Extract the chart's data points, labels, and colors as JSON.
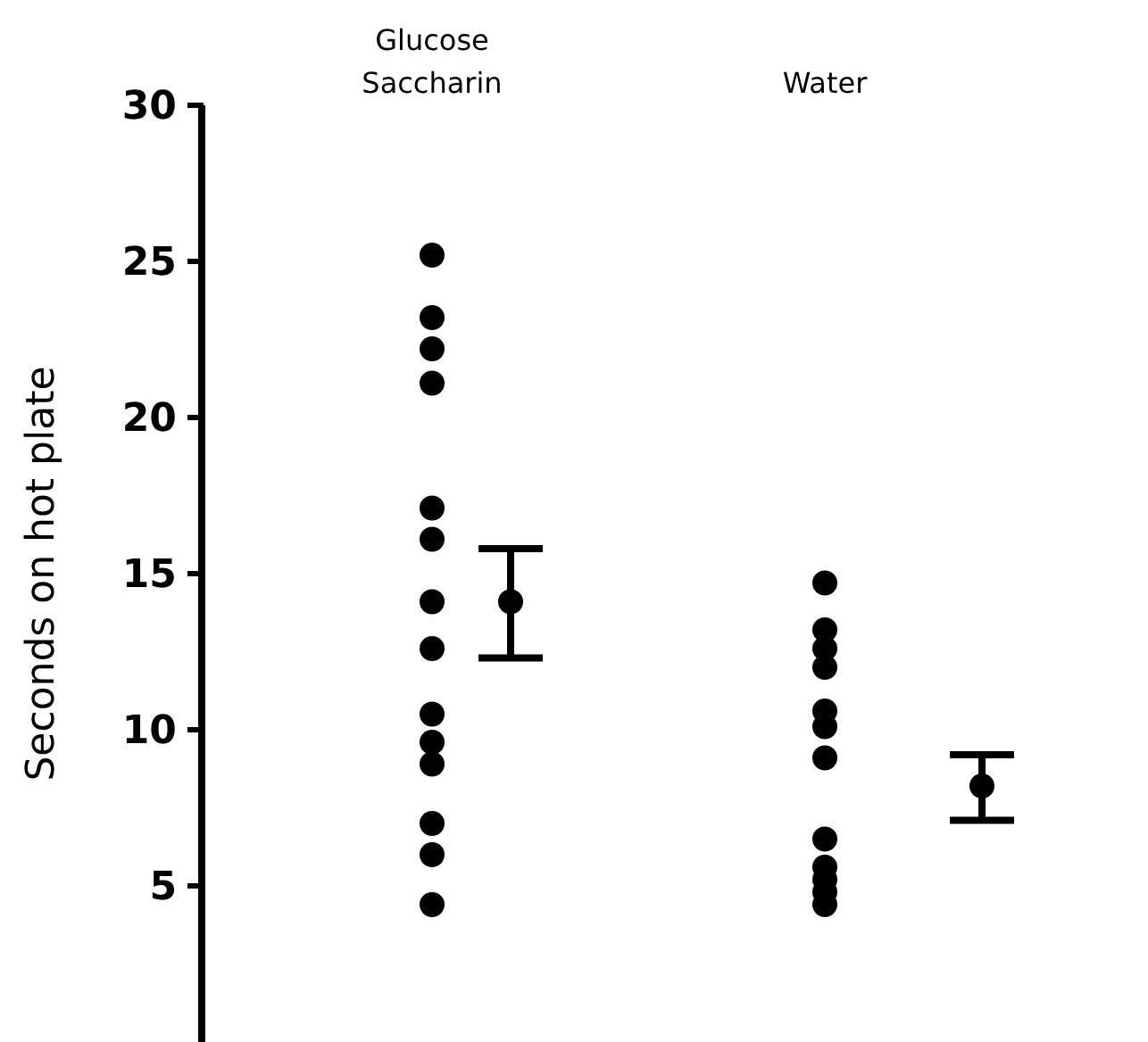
{
  "chart_data": {
    "type": "scatter",
    "ylabel": "Seconds on hot plate",
    "categories": [
      "Glucose Saccharin",
      null,
      null,
      null,
      null,
      "Water",
      null,
      null
    ],
    "ylim": [
      0,
      30
    ],
    "yticks": [
      5,
      10,
      15,
      20,
      25,
      30
    ],
    "marker": "circle",
    "series": [
      {
        "color": "#000000",
        "x": [
          "Glucose Saccharin",
          "Glucose Saccharin",
          "Glucose Saccharin",
          "Glucose Saccharin",
          "Glucose Saccharin",
          "Glucose Saccharin",
          "Glucose Saccharin",
          "Glucose Saccharin",
          "Glucose Saccharin",
          "Glucose Saccharin",
          "Glucose Saccharin",
          "Glucose Saccharin",
          "Glucose Saccharin",
          "Glucose Saccharin",
          "Water",
          "Water",
          "Water",
          "Water",
          "Water",
          "Water",
          "Water",
          "Water",
          "Water",
          "Water",
          "Water",
          "Water"
        ],
        "values": [
          25.2,
          23.2,
          22.2,
          21.1,
          17.1,
          16.1,
          14.1,
          12.6,
          10.5,
          9.6,
          8.9,
          7,
          6,
          4.4,
          14.7,
          13.2,
          12.6,
          12,
          10.6,
          10.1,
          9.1,
          6.5,
          5.6,
          5.2,
          4.8,
          4.4
        ]
      },
      {
        "color": "#000000",
        "values": [
          null,
          14.1,
          null,
          null,
          null,
          null,
          null,
          8.2
        ],
        "errors": [
          null,
          [
            12.3,
            15.8
          ],
          null,
          null,
          null,
          null,
          null,
          [
            7.1,
            9.2
          ]
        ]
      }
    ]
  }
}
